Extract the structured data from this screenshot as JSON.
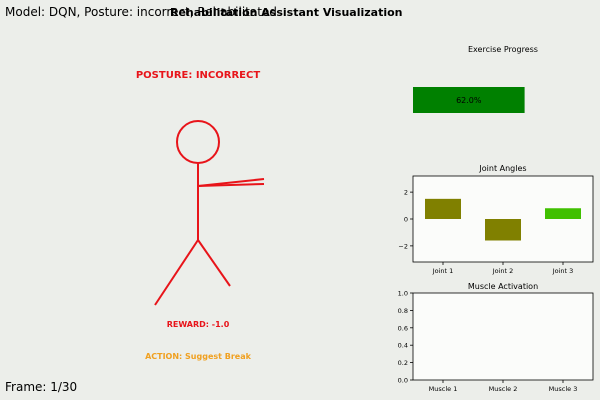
{
  "header": {
    "model_info": "Model: DQN, Posture: incorrect, Rehabilitated",
    "title": "Rehabilitation Assistant Visualization",
    "frame": "Frame: 1/30"
  },
  "figure": {
    "posture_label": "POSTURE: INCORRECT",
    "reward_label": "REWARD: -1.0",
    "action_label": "ACTION: Suggest Break",
    "colors": {
      "figure": "#e8141a",
      "reward": "#e8141a",
      "action": "#f0a020",
      "posture": "#e8141a"
    }
  },
  "chart_data": [
    {
      "type": "bar",
      "title": "Exercise Progress",
      "orientation": "horizontal",
      "values": [
        0.62
      ],
      "xlim": [
        0,
        1
      ],
      "label": "62.0%",
      "color": "#008000",
      "axes_visible": false
    },
    {
      "type": "bar",
      "title": "Joint Angles",
      "categories": [
        "Joint 1",
        "Joint 2",
        "Joint 3"
      ],
      "values": [
        1.5,
        -1.6,
        0.8
      ],
      "colors": [
        "#808000",
        "#808000",
        "#40c000"
      ],
      "ylim": [
        -3.2,
        3.2
      ],
      "yticks": [
        -2,
        0,
        2
      ],
      "ytick_labels": [
        "−2",
        "0",
        "2"
      ],
      "grid": false
    },
    {
      "type": "bar",
      "title": "Muscle Activation",
      "categories": [
        "Muscle 1",
        "Muscle 2",
        "Muscle 3"
      ],
      "values": [
        0,
        0,
        0
      ],
      "ylim": [
        0,
        1
      ],
      "yticks": [
        0.0,
        0.2,
        0.4,
        0.6,
        0.8,
        1.0
      ],
      "ytick_labels": [
        "0.0",
        "0.2",
        "0.4",
        "0.6",
        "0.8",
        "1.0"
      ],
      "grid": false
    }
  ]
}
